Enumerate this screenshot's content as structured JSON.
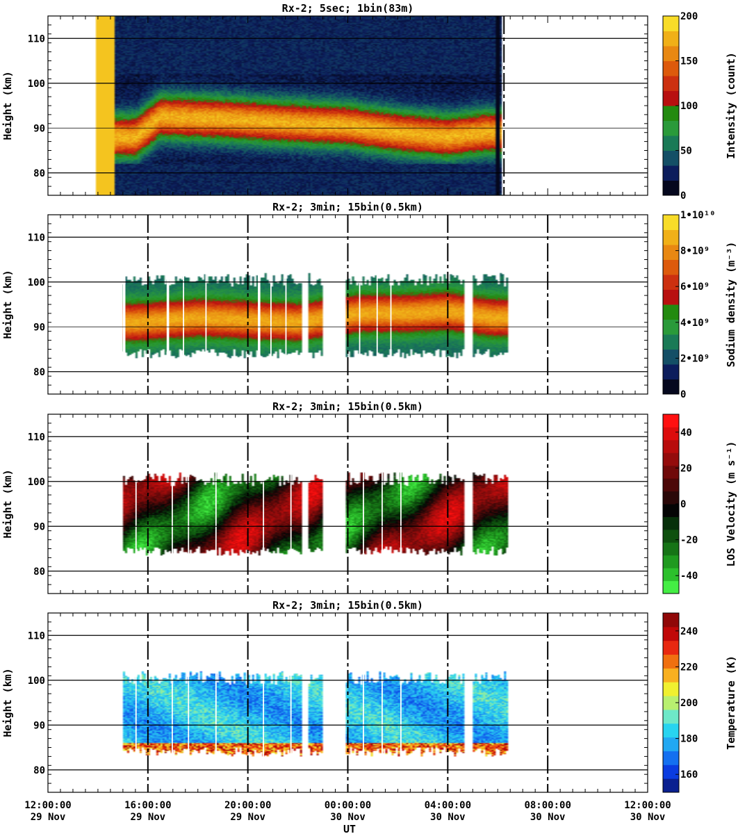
{
  "figure": {
    "x_axis_label": "UT",
    "x_tick_time_labels": [
      "12:00:00",
      "16:00:00",
      "20:00:00",
      "00:00:00",
      "04:00:00",
      "08:00:00",
      "12:00:00"
    ],
    "x_tick_date_labels": [
      "29 Nov",
      "29 Nov",
      "29 Nov",
      "30 Nov",
      "30 Nov",
      "30 Nov",
      "30 Nov"
    ]
  },
  "chart_data": [
    {
      "type": "heatmap",
      "title": "Rx-2;  5sec; 1bin(83m)",
      "ylabel": "Height (km)",
      "xlabel": "UT",
      "x_range": [
        "29 Nov 12:00:00",
        "30 Nov 12:00:00"
      ],
      "ylim": [
        75,
        115
      ],
      "yticks": [
        80,
        90,
        100,
        110
      ],
      "dashed_vlines_hours": [
        30.25
      ],
      "colorbar": {
        "label": "Intensity (count)",
        "ticks": [
          "0",
          "50",
          "100",
          "150",
          "200"
        ],
        "range": [
          0,
          200
        ],
        "colors": [
          "#05081e",
          "#0c1d5c",
          "#144f66",
          "#1a7a56",
          "#2a9a3a",
          "#238a10",
          "#b81010",
          "#cc3010",
          "#dd5a0c",
          "#e88812",
          "#f0b018",
          "#f8dc28"
        ]
      },
      "observation_window_hours": [
        13.9,
        30.2
      ],
      "layer_hours": [
        [
          15.2,
          22.0,
          83,
          98
        ],
        [
          22.0,
          29.9,
          85,
          97
        ]
      ],
      "layer_peak_km": [
        [
          15.5,
          88.0
        ],
        [
          16.5,
          92.5
        ],
        [
          19.0,
          92.0
        ],
        [
          22.0,
          91.0
        ],
        [
          24.0,
          90.5
        ],
        [
          26.0,
          89.0
        ],
        [
          28.0,
          88.0
        ],
        [
          29.5,
          89.0
        ]
      ],
      "data_gaps_hours": [
        [
          29.9,
          30.1
        ]
      ]
    },
    {
      "type": "heatmap",
      "title": "Rx-2; 3min; 15bin(0.5km)",
      "ylabel": "Height (km)",
      "xlabel": "UT",
      "x_range": [
        "29 Nov 12:00:00",
        "30 Nov 12:00:00"
      ],
      "ylim": [
        75,
        115
      ],
      "yticks": [
        80,
        90,
        100,
        110
      ],
      "dashed_vlines_hours": [
        16,
        20,
        24,
        28,
        32
      ],
      "colorbar": {
        "label": "Sodium density (m⁻³)",
        "ticks": [
          "0",
          "2•10⁹",
          "4•10⁹",
          "6•10⁹",
          "8•10⁹",
          "1•10¹⁰"
        ],
        "range": [
          0,
          10000000000
        ],
        "colors": [
          "#05081e",
          "#0c1d5c",
          "#144f66",
          "#1a7a56",
          "#2a9a3a",
          "#238a10",
          "#b81010",
          "#cc3010",
          "#dd5a0c",
          "#e88812",
          "#f0b018",
          "#f8dc28"
        ]
      },
      "data_segments_hours": [
        [
          15.0,
          22.2
        ],
        [
          22.4,
          23.0
        ],
        [
          23.9,
          28.7
        ],
        [
          29.0,
          30.4
        ]
      ],
      "layer_bottom_km": 84,
      "layer_top_km": 100,
      "peak_density_height_km": [
        [
          15.5,
          91
        ],
        [
          18.0,
          92
        ],
        [
          20.0,
          91.5
        ],
        [
          22.0,
          91
        ],
        [
          24.5,
          93
        ],
        [
          26.5,
          93
        ],
        [
          28.0,
          93.5
        ],
        [
          29.8,
          92
        ]
      ]
    },
    {
      "type": "heatmap",
      "title": "Rx-2; 3min; 15bin(0.5km)",
      "ylabel": "Height (km)",
      "xlabel": "UT",
      "x_range": [
        "29 Nov 12:00:00",
        "30 Nov 12:00:00"
      ],
      "ylim": [
        75,
        115
      ],
      "yticks": [
        80,
        90,
        100,
        110
      ],
      "dashed_vlines_hours": [
        16,
        20,
        24,
        28,
        32
      ],
      "colorbar": {
        "label": "LOS Velocity (m s⁻¹)",
        "ticks": [
          "-40",
          "-20",
          "0",
          "20",
          "40"
        ],
        "range": [
          -50,
          50
        ],
        "colors": [
          "#44ee44",
          "#2cc02c",
          "#1f9a1f",
          "#167416",
          "#0e500e",
          "#07300a",
          "#050505",
          "#2a0808",
          "#4c0808",
          "#700a0a",
          "#940c0c",
          "#b80c0c",
          "#dd0c0c",
          "#ff1010"
        ]
      },
      "data_segments_hours": [
        [
          15.0,
          22.2
        ],
        [
          22.4,
          23.0
        ],
        [
          23.9,
          28.7
        ],
        [
          29.0,
          30.4
        ]
      ]
    },
    {
      "type": "heatmap",
      "title": "Rx-2; 3min; 15bin(0.5km)",
      "ylabel": "Height (km)",
      "xlabel": "UT",
      "x_range": [
        "29 Nov 12:00:00",
        "30 Nov 12:00:00"
      ],
      "ylim": [
        75,
        115
      ],
      "yticks": [
        80,
        90,
        100,
        110
      ],
      "dashed_vlines_hours": [
        16,
        20,
        24,
        28,
        32
      ],
      "colorbar": {
        "label": "Temperature (K)",
        "ticks": [
          "160",
          "180",
          "200",
          "220",
          "240"
        ],
        "range": [
          150,
          250
        ],
        "colors": [
          "#0a2090",
          "#0a3ce0",
          "#1470f0",
          "#22a8f2",
          "#28d4f0",
          "#6ee8c8",
          "#b8f070",
          "#f0f030",
          "#f8b020",
          "#f07010",
          "#e82810",
          "#c00808",
          "#900808"
        ]
      },
      "data_segments_hours": [
        [
          15.0,
          22.2
        ],
        [
          22.4,
          23.0
        ],
        [
          23.9,
          28.7
        ],
        [
          29.0,
          30.4
        ]
      ]
    }
  ]
}
